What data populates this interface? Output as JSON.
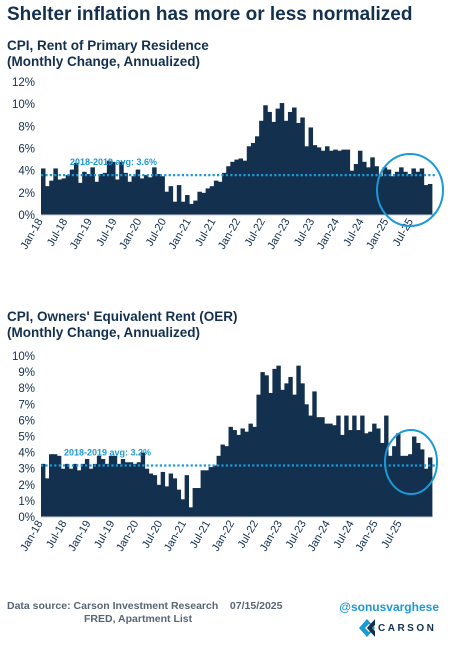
{
  "title": "Shelter inflation has more or less normalized",
  "colors": {
    "bar": "#13304f",
    "avg_line": "#1a9ad6",
    "circle": "#1a9ad6",
    "axis_text": "#13304f"
  },
  "chart_data": [
    {
      "type": "bar",
      "title_line1": "CPI, Rent of Primary Residence",
      "title_line2": "(Monthly Change, Annualized)",
      "x_tick_labels": [
        "Jan-18",
        "Jul-18",
        "Jan-19",
        "Jul-19",
        "Jan-20",
        "Jul-20",
        "Jan-21",
        "Jul-21",
        "Jan-22",
        "Jul-22",
        "Jan-23",
        "Jul-23",
        "Jan-24",
        "Jul-24",
        "Jan-25",
        "Jul-25"
      ],
      "y_tick_labels": [
        "0%",
        "2%",
        "4%",
        "6%",
        "8%",
        "10%",
        "12%"
      ],
      "ylim": [
        0,
        12
      ],
      "avg_value": 3.6,
      "avg_label": "2018-2019 avg: 3.6%",
      "values": [
        4.2,
        2.6,
        3.1,
        4.2,
        3.2,
        3.3,
        3.6,
        4.1,
        4.7,
        2.9,
        3.9,
        3.7,
        4.3,
        3.0,
        3.7,
        3.8,
        4.9,
        4.8,
        3.2,
        4.8,
        3.8,
        3.0,
        3.5,
        4.1,
        3.3,
        3.6,
        3.4,
        4.3,
        3.7,
        3.5,
        2.1,
        2.6,
        1.2,
        2.7,
        1.2,
        1.8,
        1.0,
        1.3,
        2.1,
        2.0,
        2.4,
        2.6,
        3.1,
        3.0,
        3.8,
        4.4,
        4.8,
        5.0,
        5.1,
        4.9,
        6.2,
        6.5,
        7.1,
        8.5,
        9.9,
        9.3,
        8.4,
        9.6,
        10.1,
        8.5,
        9.3,
        9.7,
        8.3,
        8.8,
        6.2,
        7.9,
        6.3,
        6.1,
        5.8,
        6.2,
        5.8,
        5.9,
        5.8,
        5.9,
        5.9,
        4.0,
        4.6,
        5.8,
        4.8,
        4.3,
        5.2,
        4.4,
        3.5,
        4.3,
        4.1,
        3.5,
        3.9,
        4.3,
        3.9,
        3.7,
        4.2,
        3.9,
        4.2,
        2.7,
        2.8
      ]
    },
    {
      "type": "bar",
      "title_line1": "CPI, Owners' Equivalent Rent (OER)",
      "title_line2": "(Monthly Change, Annualized)",
      "x_tick_labels": [
        "Jan-18",
        "Jul-18",
        "Jan-19",
        "Jul-19",
        "Jan-20",
        "Jul-20",
        "Jan-21",
        "Jul-21",
        "Jan-22",
        "Jul-22",
        "Jan-23",
        "Jul-23",
        "Jan-24",
        "Jul-24",
        "Jan-25",
        "Jul-25"
      ],
      "y_tick_labels": [
        "0%",
        "1%",
        "2%",
        "3%",
        "4%",
        "5%",
        "6%",
        "7%",
        "8%",
        "9%",
        "10%"
      ],
      "ylim": [
        0,
        10
      ],
      "avg_value": 3.2,
      "avg_label": "2018-2019 avg: 3.2%",
      "values": [
        3.3,
        2.4,
        3.9,
        3.9,
        3.8,
        3.0,
        3.3,
        3.0,
        3.3,
        2.9,
        3.3,
        3.6,
        3.0,
        3.3,
        3.8,
        3.6,
        3.3,
        3.8,
        3.8,
        3.3,
        3.6,
        3.4,
        3.4,
        3.3,
        3.4,
        4.0,
        3.0,
        2.7,
        2.6,
        2.0,
        2.8,
        1.9,
        2.7,
        2.4,
        1.7,
        1.1,
        2.6,
        0.6,
        1.8,
        1.8,
        2.9,
        2.9,
        3.1,
        3.2,
        3.8,
        4.5,
        4.4,
        5.6,
        5.4,
        5.1,
        5.5,
        5.3,
        5.8,
        5.6,
        7.6,
        9.0,
        8.8,
        7.7,
        9.2,
        9.4,
        7.9,
        8.3,
        8.7,
        7.6,
        9.4,
        8.3,
        7.0,
        6.3,
        7.8,
        6.2,
        6.2,
        5.8,
        5.8,
        5.7,
        6.3,
        5.1,
        6.3,
        5.4,
        6.3,
        5.4,
        6.3,
        5.2,
        5.3,
        5.8,
        5.5,
        4.6,
        6.3,
        3.8,
        4.4,
        5.2,
        3.8,
        3.8,
        3.9,
        5.0,
        4.6,
        4.2,
        3.0,
        3.7
      ]
    }
  ],
  "footer": {
    "source_line1": "Data source: Carson Investment Research    07/15/2025",
    "source_line2": "FRED, Apartment List",
    "handle": "@sonusvarghese",
    "brand": "CARSON"
  }
}
